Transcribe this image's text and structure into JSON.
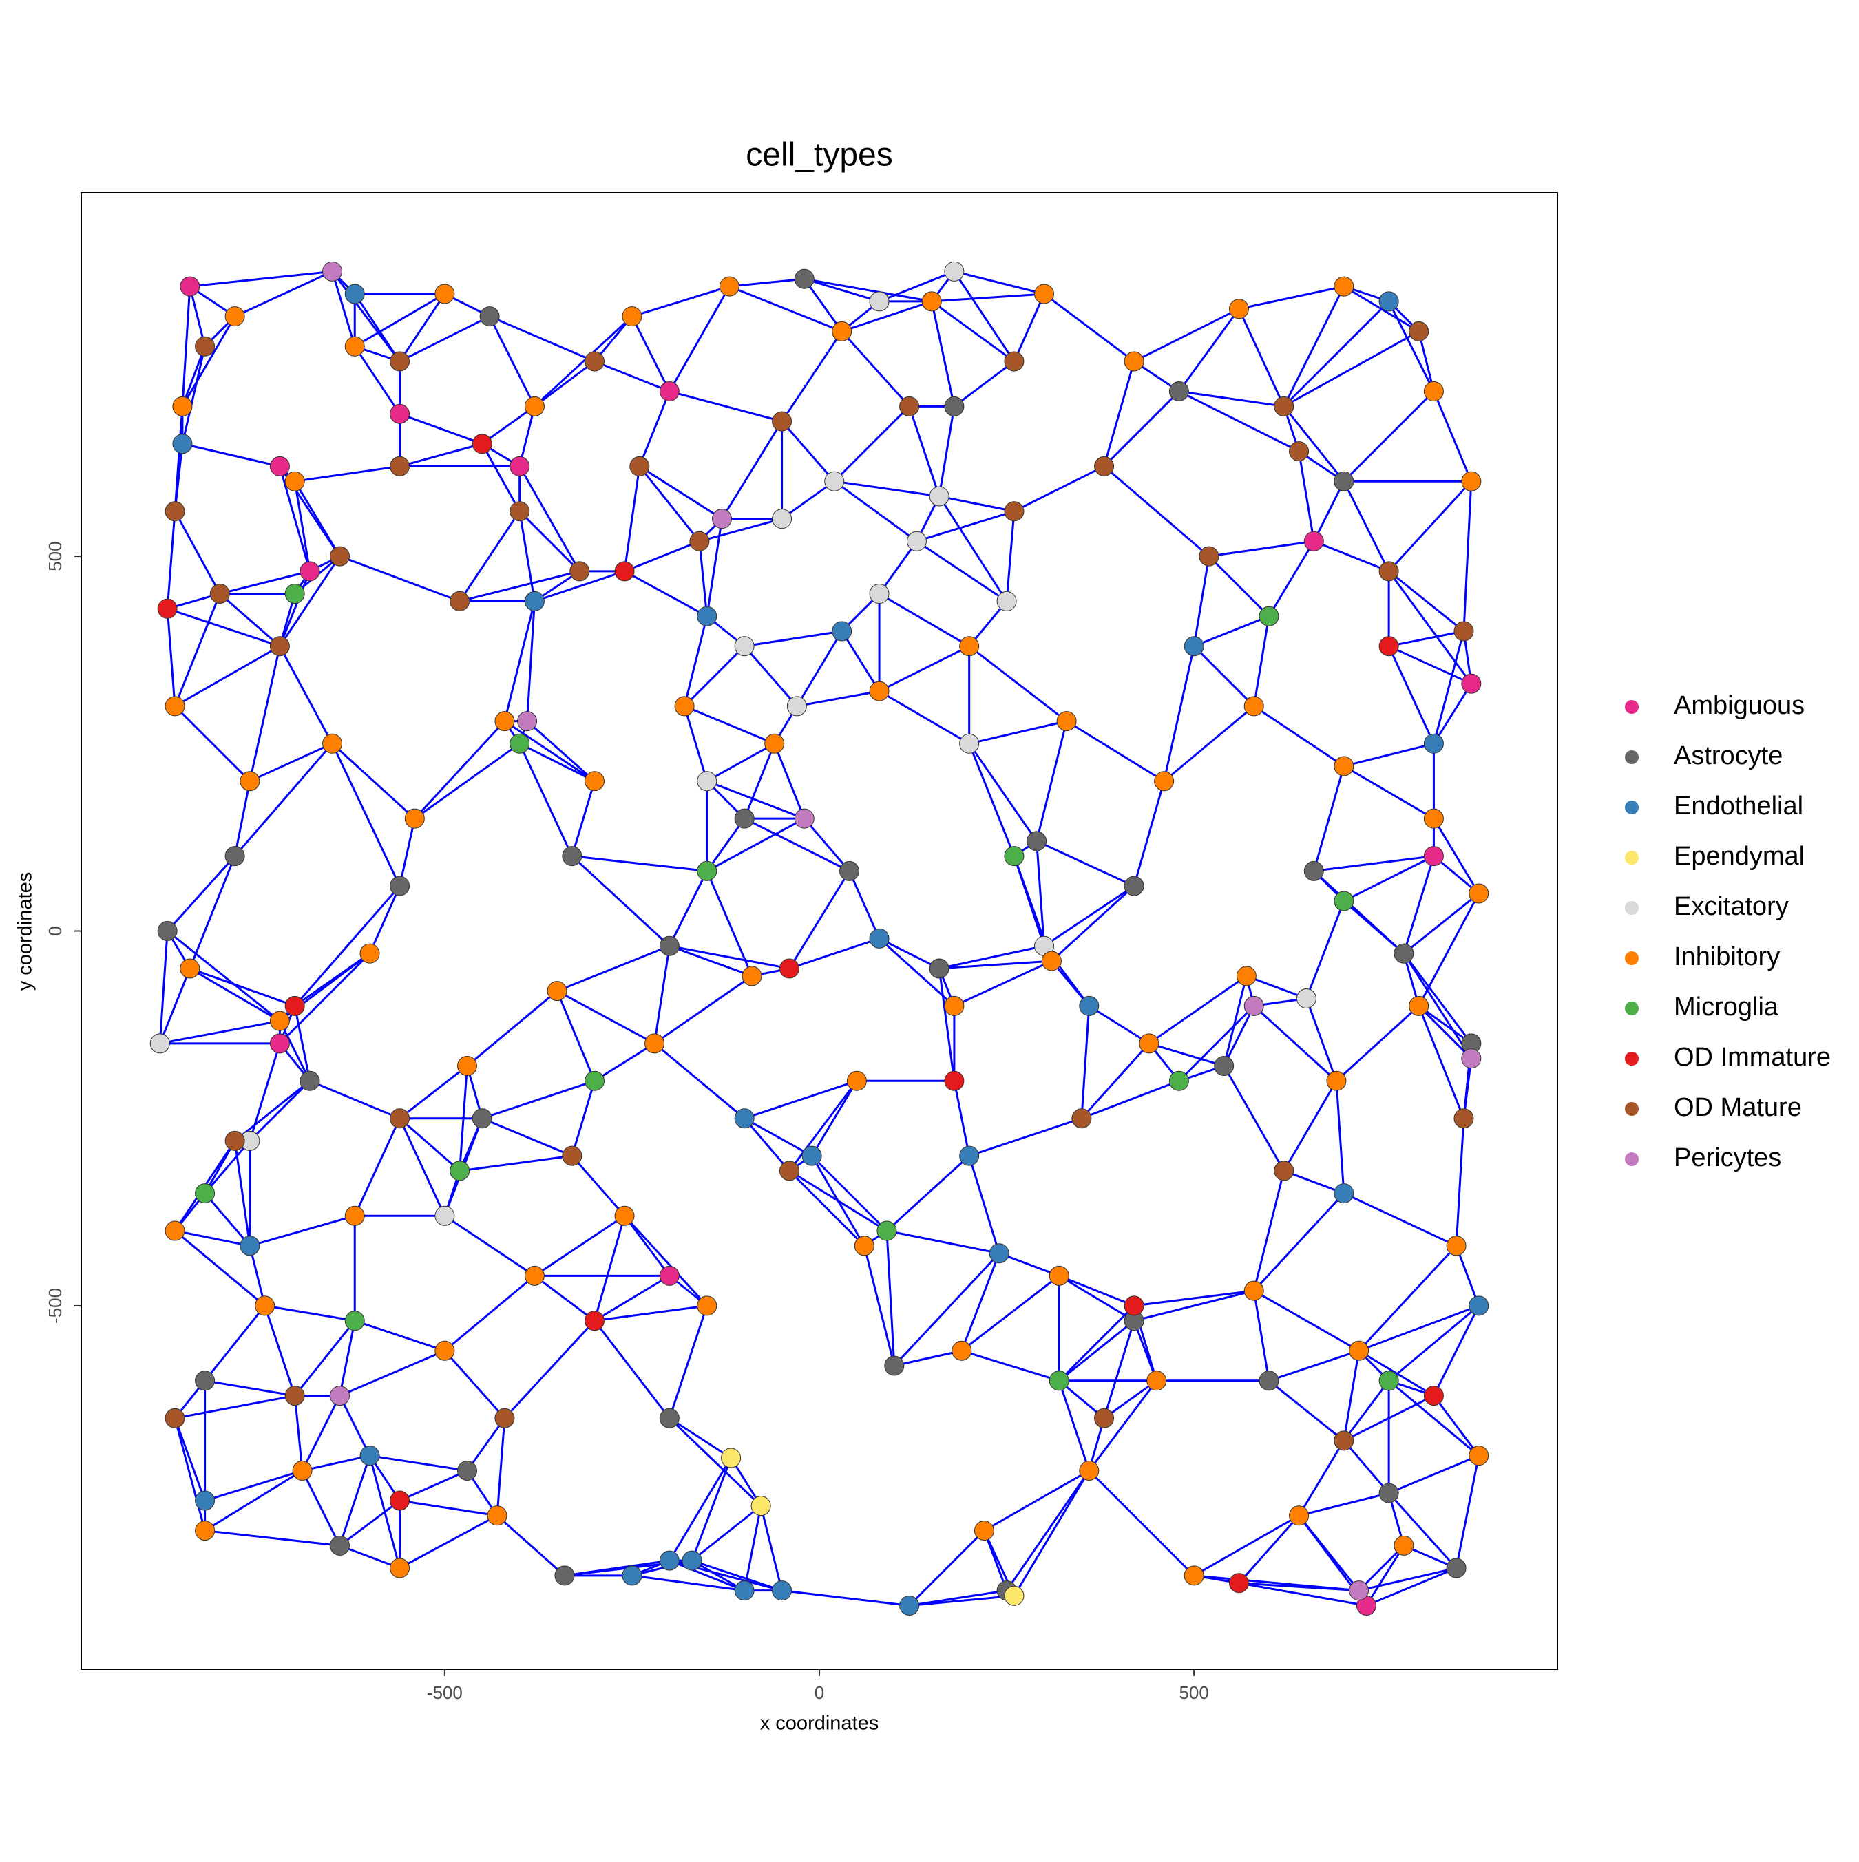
{
  "chart_data": {
    "type": "scatter",
    "title": "cell_types",
    "x_label": "x coordinates",
    "y_label": "y coordinates",
    "xlim": [
      -985,
      985
    ],
    "ylim": [
      -985,
      985
    ],
    "xticks": [
      -500,
      0,
      500
    ],
    "yticks": [
      -500,
      0,
      500
    ],
    "legend_position": "right",
    "series": [
      {
        "name": "Ambiguous",
        "color": "#e7298a",
        "x": [
          -840,
          -720,
          -560,
          -400,
          -200,
          -680,
          660,
          870,
          820,
          730,
          -200,
          -720
        ],
        "y": [
          860,
          620,
          690,
          620,
          720,
          480,
          520,
          330,
          100,
          -900,
          -460,
          -150
        ]
      },
      {
        "name": "Astrocyte",
        "color": "#666666",
        "x": [
          -870,
          -780,
          -680,
          -560,
          -450,
          -330,
          -200,
          -100,
          40,
          160,
          290,
          420,
          540,
          660,
          780,
          870,
          -820,
          -640,
          -470,
          -340,
          -200,
          100,
          250,
          420,
          600,
          760,
          850,
          -440,
          -20,
          180,
          480,
          700
        ],
        "y": [
          0,
          100,
          -200,
          60,
          -250,
          100,
          -20,
          150,
          80,
          -50,
          120,
          60,
          -180,
          80,
          -30,
          -150,
          -600,
          -820,
          -720,
          -860,
          -650,
          -580,
          -880,
          -520,
          -600,
          -750,
          -850,
          820,
          870,
          700,
          720,
          600
        ]
      },
      {
        "name": "Endothelial",
        "color": "#377eb8",
        "x": [
          -850,
          -620,
          -380,
          -150,
          30,
          -100,
          80,
          200,
          360,
          500,
          700,
          820,
          -760,
          -600,
          -250,
          -200,
          -170,
          -100,
          -50,
          -10,
          120,
          240,
          760,
          -820,
          880
        ],
        "y": [
          650,
          850,
          440,
          420,
          400,
          -250,
          -10,
          -300,
          -100,
          380,
          -350,
          250,
          -420,
          -700,
          -860,
          -840,
          -840,
          -880,
          -880,
          -300,
          -900,
          -430,
          840,
          -760,
          -500
        ]
      },
      {
        "name": "Ependymal",
        "color": "#fde76a",
        "x": [
          -118,
          -78,
          260
        ],
        "y": [
          -703,
          -767,
          -887
        ]
      },
      {
        "name": "Excitatory",
        "color": "#d9d9d9",
        "x": [
          -50,
          20,
          80,
          130,
          -100,
          200,
          -30,
          250,
          160,
          -150,
          -760,
          -880,
          -500,
          300,
          650,
          80,
          180
        ],
        "y": [
          550,
          600,
          450,
          520,
          380,
          250,
          300,
          440,
          580,
          200,
          -280,
          -150,
          -380,
          -20,
          -90,
          840,
          880
        ]
      },
      {
        "name": "Inhibitory",
        "color": "#ff7f00",
        "x": [
          -850,
          -780,
          -700,
          -620,
          -500,
          -380,
          -250,
          -120,
          30,
          150,
          300,
          420,
          560,
          700,
          820,
          870,
          -860,
          -760,
          -650,
          -540,
          -420,
          -300,
          -180,
          -60,
          80,
          200,
          330,
          460,
          580,
          700,
          820,
          880,
          -840,
          -720,
          -600,
          -470,
          -350,
          -220,
          -90,
          50,
          180,
          310,
          440,
          570,
          690,
          800,
          -860,
          -740,
          -620,
          -500,
          -380,
          -260,
          -150,
          60,
          190,
          320,
          450,
          580,
          720,
          850,
          -820,
          -690,
          -560,
          -430,
          220,
          360,
          500,
          640,
          780,
          880
        ],
        "y": [
          700,
          820,
          600,
          780,
          850,
          700,
          820,
          860,
          800,
          840,
          850,
          760,
          830,
          860,
          720,
          600,
          300,
          200,
          250,
          150,
          280,
          200,
          300,
          250,
          320,
          380,
          280,
          200,
          300,
          220,
          150,
          50,
          -50,
          -120,
          -30,
          -180,
          -80,
          -150,
          -60,
          -200,
          -100,
          -40,
          -150,
          -60,
          -200,
          -100,
          -400,
          -500,
          -380,
          -560,
          -460,
          -380,
          -500,
          -420,
          -560,
          -460,
          -600,
          -480,
          -560,
          -420,
          -800,
          -720,
          -850,
          -780,
          -800,
          -720,
          -860,
          -780,
          -820,
          -700
        ]
      },
      {
        "name": "Microglia",
        "color": "#4daf4a",
        "x": [
          -700,
          -480,
          -300,
          -150,
          90,
          260,
          480,
          600,
          760,
          -620,
          320,
          -820,
          700,
          -400
        ],
        "y": [
          450,
          -320,
          -200,
          80,
          -400,
          100,
          -200,
          420,
          -600,
          -520,
          -600,
          -350,
          40,
          250
        ]
      },
      {
        "name": "OD Immature",
        "color": "#e41a1c",
        "x": [
          -870,
          -450,
          -260,
          -40,
          180,
          420,
          760,
          -560,
          560,
          820,
          -700,
          -300
        ],
        "y": [
          430,
          650,
          480,
          -50,
          -200,
          -500,
          380,
          -760,
          -870,
          -620,
          -100,
          -520
        ]
      },
      {
        "name": "OD Mature",
        "color": "#a65628",
        "x": [
          -860,
          -800,
          -720,
          -640,
          -560,
          -480,
          -400,
          -320,
          -240,
          -160,
          -50,
          120,
          260,
          380,
          520,
          640,
          760,
          860,
          -820,
          -560,
          -300,
          260,
          620,
          800,
          -780,
          -560,
          -330,
          -40,
          350,
          620,
          860,
          -700,
          -420,
          380,
          700,
          -860
        ],
        "y": [
          560,
          450,
          380,
          500,
          620,
          440,
          560,
          480,
          620,
          520,
          680,
          700,
          560,
          620,
          500,
          640,
          480,
          400,
          780,
          760,
          760,
          760,
          700,
          800,
          -280,
          -250,
          -300,
          -320,
          -250,
          -320,
          -250,
          -620,
          -650,
          -650,
          -680,
          -650
        ]
      },
      {
        "name": "Pericytes",
        "color": "#c27bbf",
        "x": [
          -650,
          -390,
          -130,
          -20,
          580,
          870,
          -640,
          720
        ],
        "y": [
          880,
          280,
          550,
          150,
          -100,
          -170,
          -620,
          -880
        ]
      }
    ]
  }
}
